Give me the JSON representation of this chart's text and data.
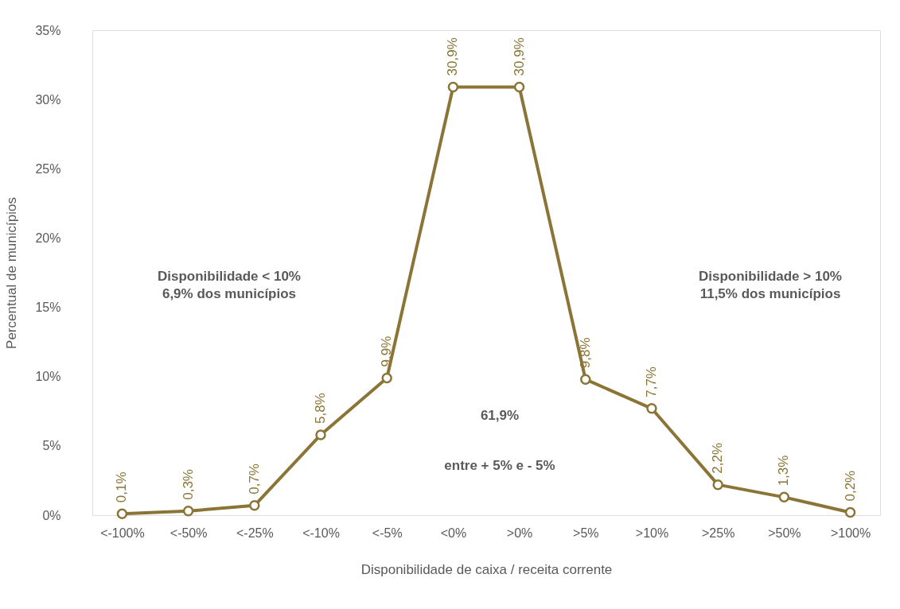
{
  "chart_data": {
    "type": "line",
    "xlabel": "Disponibilidade de caixa / receita corrente",
    "ylabel": "Percentual de municípios",
    "categories": [
      "<-100%",
      "<-50%",
      "<-25%",
      "<-10%",
      "<-5%",
      "<0%",
      ">0%",
      ">5%",
      ">10%",
      ">25%",
      ">50%",
      ">100%"
    ],
    "series": [
      {
        "color": "#8b7536",
        "values": [
          0.1,
          0.3,
          0.7,
          5.8,
          9.9,
          30.9,
          30.9,
          9.8,
          7.7,
          2.2,
          1.3,
          0.2
        ],
        "value_labels": [
          "0,1%",
          "0,3%",
          "0,7%",
          "5,8%",
          "9,9%",
          "30,9%",
          "30,9%",
          "9,8%",
          "7,7%",
          "2,2%",
          "1,3%",
          "0,2%"
        ]
      }
    ],
    "ylim": [
      0,
      35
    ],
    "yticks": [
      {
        "value": 0,
        "label": "0%"
      },
      {
        "value": 5,
        "label": "5%"
      },
      {
        "value": 10,
        "label": "10%"
      },
      {
        "value": 15,
        "label": "15%"
      },
      {
        "value": 20,
        "label": "20%"
      },
      {
        "value": 25,
        "label": "25%"
      },
      {
        "value": 30,
        "label": "30%"
      },
      {
        "value": 35,
        "label": "35%"
      }
    ],
    "annotations": [
      "Disponibilidade < 10%\n6,9% dos municípios",
      "Disponibilidade > 10%\n11,5% dos municípios",
      "61,9%",
      "entre + 5% e - 5%"
    ],
    "grid": false,
    "marker": "circle",
    "line_style": "solid"
  }
}
